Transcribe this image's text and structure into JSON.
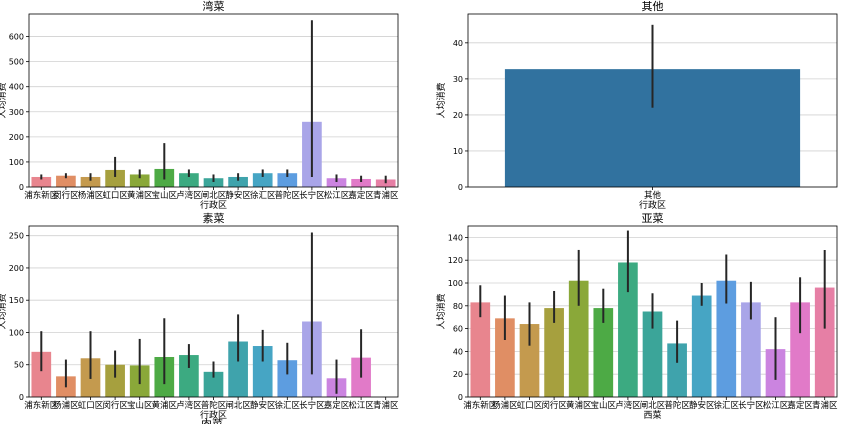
{
  "chart_data": [
    {
      "type": "bar",
      "title": "湾菜",
      "xlabel": "行政区",
      "ylabel": "人均消费",
      "ylim": [
        0,
        690
      ],
      "yticks": [
        0,
        100,
        200,
        300,
        400,
        500,
        600
      ],
      "categories": [
        "浦东新区",
        "闵行区",
        "杨浦区",
        "虹口区",
        "黄浦区",
        "宝山区",
        "卢湾区",
        "闸北区",
        "静安区",
        "徐汇区",
        "普陀区",
        "长宁区",
        "松江区",
        "嘉定区",
        "青浦区"
      ],
      "values": [
        40,
        45,
        40,
        68,
        50,
        72,
        55,
        35,
        40,
        55,
        55,
        260,
        35,
        32,
        30
      ],
      "error_low": [
        30,
        35,
        25,
        40,
        35,
        30,
        40,
        20,
        25,
        40,
        40,
        40,
        20,
        20,
        15
      ],
      "error_high": [
        50,
        55,
        55,
        120,
        70,
        175,
        70,
        50,
        55,
        70,
        70,
        665,
        50,
        45,
        45
      ],
      "colors": [
        "#e8858e",
        "#e08e64",
        "#c49a4e",
        "#a6a03e",
        "#8aa839",
        "#4daa45",
        "#3caa81",
        "#3ba599",
        "#3fa3ac",
        "#46a5c4",
        "#5d9de0",
        "#a9a5e8",
        "#cb84e0",
        "#e17ac8",
        "#e67fa5"
      ]
    },
    {
      "type": "bar",
      "title": "其他",
      "xlabel": "行政区",
      "ylabel": "人均消费",
      "ylim": [
        0,
        48
      ],
      "yticks": [
        0,
        10,
        20,
        30,
        40
      ],
      "categories": [
        "其他"
      ],
      "values": [
        32.7
      ],
      "error_low": [
        22
      ],
      "error_high": [
        45
      ],
      "colors": [
        "#31729f"
      ]
    },
    {
      "type": "bar",
      "title": "素菜",
      "xlabel": "行政区",
      "ylabel": "人均消费",
      "ylim": [
        0,
        265
      ],
      "yticks": [
        0,
        50,
        100,
        150,
        200,
        250
      ],
      "categories": [
        "浦东新区",
        "杨浦区",
        "虹口区",
        "闵行区",
        "宝山区",
        "黄浦区",
        "卢湾区",
        "普陀区",
        "闸北区",
        "静安区",
        "徐汇区",
        "长宁区",
        "嘉定区",
        "松江区",
        "青浦区"
      ],
      "values": [
        70,
        32,
        60,
        50,
        49,
        62,
        65,
        39,
        86,
        79,
        57,
        117,
        29,
        61,
        0
      ],
      "error_low": [
        40,
        15,
        28,
        30,
        20,
        20,
        45,
        30,
        55,
        55,
        35,
        35,
        5,
        30,
        0
      ],
      "error_high": [
        102,
        58,
        102,
        72,
        90,
        122,
        82,
        55,
        128,
        104,
        84,
        255,
        58,
        105,
        0
      ],
      "colors": [
        "#e8858e",
        "#e08e64",
        "#c49a4e",
        "#a6a03e",
        "#8aa839",
        "#4daa45",
        "#3caa81",
        "#3ba599",
        "#3fa3ac",
        "#46a5c4",
        "#5d9de0",
        "#a9a5e8",
        "#cb84e0",
        "#e17ac8",
        "#e67fa5"
      ]
    },
    {
      "type": "bar",
      "title": "亚菜",
      "xlabel": "西菜",
      "ylabel": "人均消费",
      "ylim": [
        0,
        150
      ],
      "yticks": [
        0,
        20,
        40,
        60,
        80,
        100,
        120,
        140
      ],
      "categories": [
        "浦东新区",
        "杨浦区",
        "虹口区",
        "闵行区",
        "黄浦区",
        "宝山区",
        "卢湾区",
        "闸北区",
        "普陀区",
        "静安区",
        "徐汇区",
        "长宁区",
        "松江区",
        "嘉定区",
        "青浦区"
      ],
      "values": [
        83,
        69,
        64,
        78,
        102,
        78,
        118,
        75,
        47,
        89,
        102,
        83,
        42,
        83,
        96
      ],
      "error_low": [
        70,
        50,
        45,
        65,
        80,
        65,
        92,
        60,
        30,
        80,
        82,
        68,
        15,
        56,
        60
      ],
      "error_high": [
        98,
        89,
        83,
        93,
        129,
        95,
        146,
        91,
        67,
        100,
        125,
        101,
        70,
        105,
        129
      ],
      "colors": [
        "#e8858e",
        "#e08e64",
        "#c49a4e",
        "#a6a03e",
        "#8aa839",
        "#4daa45",
        "#3caa81",
        "#3ba599",
        "#3fa3ac",
        "#46a5c4",
        "#5d9de0",
        "#a9a5e8",
        "#cb84e0",
        "#e17ac8",
        "#e67fa5"
      ]
    }
  ],
  "figure": {
    "extra_label": "肉菜"
  }
}
